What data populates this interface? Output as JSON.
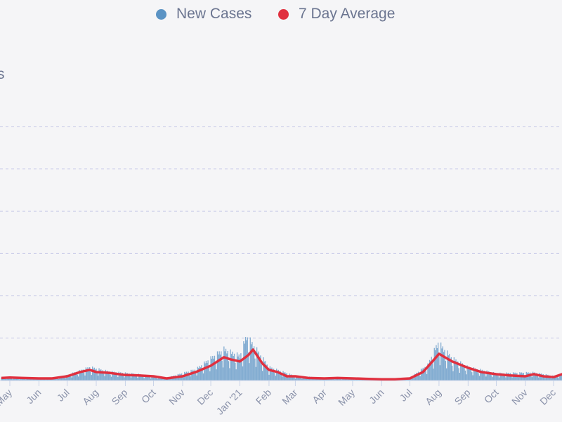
{
  "legend": [
    {
      "label": "New Cases",
      "color": "#5b93c4"
    },
    {
      "label": "7 Day Average",
      "color": "#e0303f"
    }
  ],
  "y_label_fragment": "s",
  "chart_data": {
    "type": "bar",
    "title": "",
    "xlabel": "",
    "ylabel": "",
    "grid": true,
    "legend_position": "top",
    "x_ticks": [
      "May",
      "Jun",
      "Jul",
      "Aug",
      "Sep",
      "Oct",
      "Nov",
      "Dec",
      "Jan '21",
      "Feb",
      "Mar",
      "Apr",
      "May",
      "Jun",
      "Jul",
      "Aug",
      "Sep",
      "Oct",
      "Nov",
      "Dec"
    ],
    "x_tick_dates": [
      "2020-05-01",
      "2020-06-01",
      "2020-07-01",
      "2020-08-01",
      "2020-09-01",
      "2020-10-01",
      "2020-11-01",
      "2020-12-01",
      "2021-01-01",
      "2021-02-01",
      "2021-03-01",
      "2021-04-01",
      "2021-05-01",
      "2021-06-01",
      "2021-07-01",
      "2021-08-01",
      "2021-09-01",
      "2021-10-01",
      "2021-11-01",
      "2021-12-01"
    ],
    "xlim": [
      "2020-04-22",
      "2022-01-05"
    ],
    "ylim": [
      0,
      6
    ],
    "series": [
      {
        "name": "New Cases",
        "type": "bar",
        "color": "#5b93c4",
        "x": [
          "2020-04-22",
          "2020-05-15",
          "2020-06-15",
          "2020-07-01",
          "2020-07-25",
          "2020-08-15",
          "2020-09-15",
          "2020-10-15",
          "2020-11-15",
          "2020-12-01",
          "2020-12-15",
          "2021-01-01",
          "2021-01-08",
          "2021-01-15",
          "2021-02-01",
          "2021-03-01",
          "2021-04-01",
          "2021-05-15",
          "2021-06-15",
          "2021-07-01",
          "2021-07-20",
          "2021-07-31",
          "2021-08-15",
          "2021-09-01",
          "2021-10-01",
          "2021-11-10",
          "2021-12-01",
          "2021-12-20",
          "2022-01-05"
        ],
        "values": [
          0.07,
          0.06,
          0.05,
          0.12,
          0.3,
          0.2,
          0.14,
          0.06,
          0.25,
          0.5,
          0.7,
          0.55,
          1.0,
          0.8,
          0.3,
          0.1,
          0.06,
          0.04,
          0.03,
          0.06,
          0.35,
          0.85,
          0.5,
          0.3,
          0.16,
          0.18,
          0.1,
          0.2,
          0.2
        ]
      },
      {
        "name": "7 Day Average",
        "type": "line",
        "color": "#e0303f",
        "x": [
          "2020-04-22",
          "2020-05-01",
          "2020-05-15",
          "2020-06-01",
          "2020-06-15",
          "2020-07-01",
          "2020-07-15",
          "2020-07-25",
          "2020-08-01",
          "2020-08-15",
          "2020-09-01",
          "2020-09-15",
          "2020-10-01",
          "2020-10-15",
          "2020-11-01",
          "2020-11-15",
          "2020-12-01",
          "2020-12-15",
          "2020-12-22",
          "2021-01-01",
          "2021-01-10",
          "2021-01-15",
          "2021-01-25",
          "2021-02-01",
          "2021-02-10",
          "2021-02-20",
          "2021-03-01",
          "2021-03-15",
          "2021-04-01",
          "2021-04-15",
          "2021-05-01",
          "2021-05-15",
          "2021-06-01",
          "2021-06-15",
          "2021-07-01",
          "2021-07-15",
          "2021-07-25",
          "2021-08-01",
          "2021-08-15",
          "2021-09-01",
          "2021-09-15",
          "2021-10-01",
          "2021-10-15",
          "2021-11-01",
          "2021-11-10",
          "2021-11-20",
          "2021-12-01",
          "2021-12-10",
          "2021-12-20",
          "2022-01-05"
        ],
        "values": [
          0.06,
          0.07,
          0.06,
          0.05,
          0.05,
          0.1,
          0.2,
          0.25,
          0.2,
          0.18,
          0.13,
          0.12,
          0.1,
          0.05,
          0.1,
          0.2,
          0.35,
          0.55,
          0.5,
          0.45,
          0.6,
          0.73,
          0.4,
          0.25,
          0.2,
          0.1,
          0.1,
          0.06,
          0.05,
          0.06,
          0.05,
          0.04,
          0.03,
          0.03,
          0.05,
          0.2,
          0.45,
          0.63,
          0.45,
          0.3,
          0.2,
          0.15,
          0.12,
          0.1,
          0.15,
          0.1,
          0.08,
          0.15,
          0.15,
          0.15
        ]
      }
    ]
  }
}
